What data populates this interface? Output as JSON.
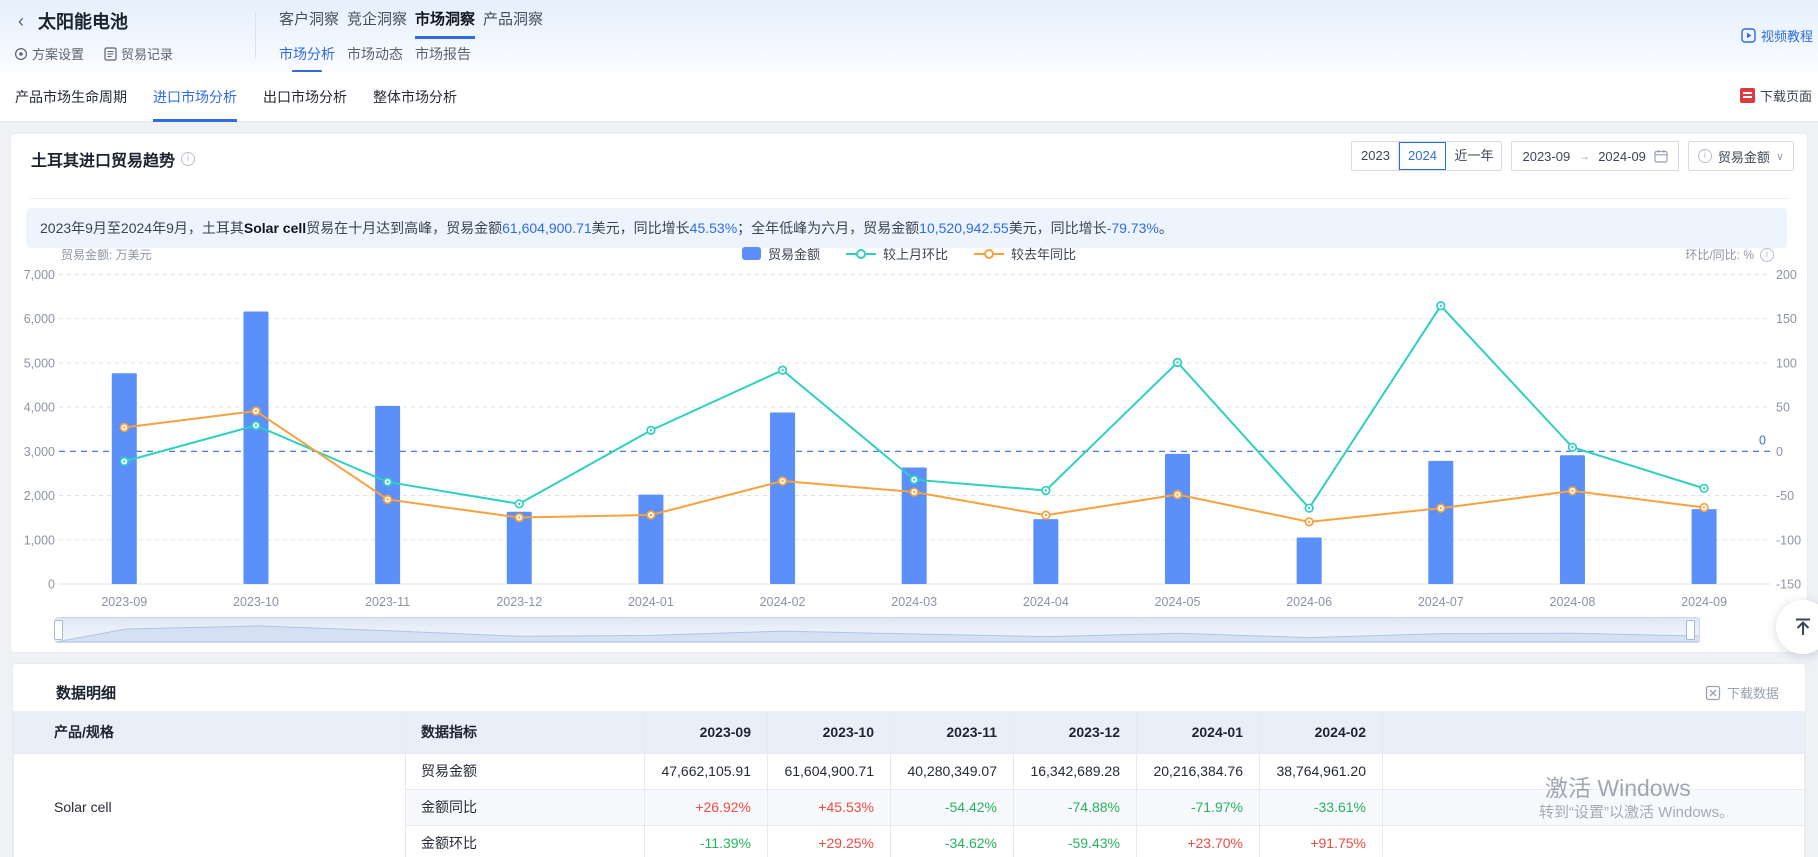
{
  "header": {
    "back": "‹",
    "title": "太阳能电池",
    "action_plan": "方案设置",
    "action_record": "贸易记录",
    "tabs": [
      "客户洞察",
      "竞企洞察",
      "市场洞察",
      "产品洞察"
    ],
    "active_tab": "市场洞察",
    "subtabs": [
      "市场分析",
      "市场动态",
      "市场报告"
    ],
    "active_subtab": "市场分析",
    "video_link": "视频教程"
  },
  "nav": {
    "items": [
      "产品市场生命周期",
      "进口市场分析",
      "出口市场分析",
      "整体市场分析"
    ],
    "active_item": "进口市场分析",
    "download_page": "下载页面"
  },
  "trend": {
    "title": "土耳其进口贸易趋势",
    "year_buttons": [
      "2023",
      "2024",
      "近一年"
    ],
    "active_year": "2024",
    "date_from": "2023-09",
    "date_to": "2024-09",
    "metric": "贸易金额",
    "summary": [
      {
        "t": "2023年9月至2024年9月，土耳其",
        "s": "n"
      },
      {
        "t": "Solar cell",
        "s": "b"
      },
      {
        "t": "贸易在十月达到高峰，贸易金额",
        "s": "n"
      },
      {
        "t": "61,604,900.71",
        "s": "num"
      },
      {
        "t": "美元，同比增长",
        "s": "n"
      },
      {
        "t": "45.53%",
        "s": "num"
      },
      {
        "t": "；全年低峰为六月，贸易金额",
        "s": "n"
      },
      {
        "t": "10,520,942.55",
        "s": "num"
      },
      {
        "t": "美元，同比增长",
        "s": "n"
      },
      {
        "t": "-79.73%",
        "s": "num"
      },
      {
        "t": "。",
        "s": "n"
      }
    ],
    "axis_caption_left": "贸易金额: 万美元",
    "axis_caption_right": "环比/同比: %",
    "legend": [
      "贸易金额",
      "较上月环比",
      "较去年同比"
    ]
  },
  "chart_data": {
    "type": "bar",
    "categories": [
      "2023-09",
      "2023-10",
      "2023-11",
      "2023-12",
      "2024-01",
      "2024-02",
      "2024-03",
      "2024-04",
      "2024-05",
      "2024-06",
      "2024-07",
      "2024-08",
      "2024-09"
    ],
    "series": [
      {
        "name": "贸易金额",
        "type": "bar",
        "unit": "万美元",
        "values": [
          4766.2,
          6160.5,
          4028.0,
          1634.3,
          2021.6,
          3876.5,
          2633,
          1467,
          2941,
          1052.1,
          2783,
          2912,
          1693
        ]
      },
      {
        "name": "较上月环比",
        "type": "line",
        "unit": "%",
        "values": [
          -11.39,
          29.25,
          -34.62,
          -59.43,
          23.7,
          91.75,
          -32.1,
          -44.3,
          100.5,
          -64.2,
          164.5,
          4.6,
          -41.9
        ]
      },
      {
        "name": "较去年同比",
        "type": "line",
        "unit": "%",
        "values": [
          26.92,
          45.53,
          -54.42,
          -74.88,
          -71.97,
          -33.61,
          -46.0,
          -72.2,
          -48.9,
          -79.73,
          -64.3,
          -44.7,
          -63.5
        ]
      }
    ],
    "y_left": {
      "min": 0,
      "max": 7000,
      "step": 1000,
      "label": "贸易金额: 万美元"
    },
    "y_right": {
      "min": -150,
      "max": 200,
      "step": 50,
      "label": "环比/同比: %"
    },
    "zero_marker": "0",
    "grid": true,
    "legend_position": "top-center",
    "colors": {
      "bar": "#5b8ff9",
      "mom": "#2fd0c0",
      "yoy": "#f9a13c",
      "zero_line": "#2e6ce4"
    }
  },
  "table": {
    "title": "数据明细",
    "download": "下载数据",
    "col_product": "产品/规格",
    "col_metric": "数据指标",
    "months": [
      "2023-09",
      "2023-10",
      "2023-11",
      "2023-12",
      "2024-01",
      "2024-02"
    ],
    "product": "Solar cell",
    "rows": [
      {
        "label": "贸易金额",
        "values": [
          "47,662,105.91",
          "61,604,900.71",
          "40,280,349.07",
          "16,342,689.28",
          "20,216,384.76",
          "38,764,961.20"
        ]
      },
      {
        "label": "金额同比",
        "values": [
          "+26.92%",
          "+45.53%",
          "-54.42%",
          "-74.88%",
          "-71.97%",
          "-33.61%"
        ]
      },
      {
        "label": "金额环比",
        "values": [
          "-11.39%",
          "+29.25%",
          "-34.62%",
          "-59.43%",
          "+23.70%",
          "+91.75%"
        ]
      }
    ]
  },
  "watermark": {
    "line1": "激活 Windows",
    "line2": "转到“设置”以激活 Windows。"
  },
  "colors": {
    "accent": "#2e6ce4",
    "up_red": "#f04b42",
    "down_green": "#26b35f",
    "header_bg": "#e9eef8"
  }
}
